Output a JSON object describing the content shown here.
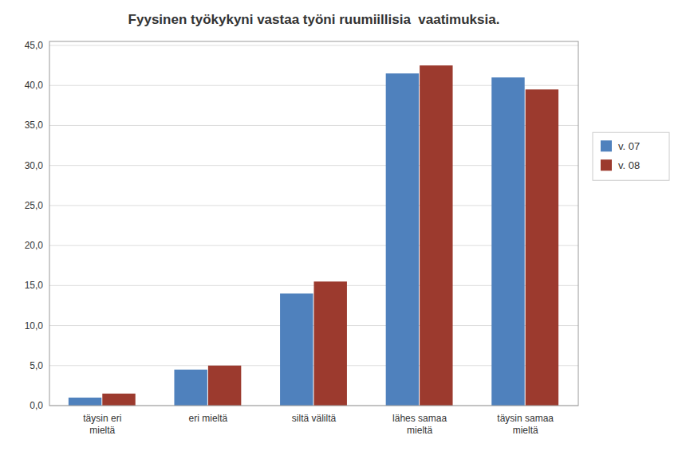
{
  "chart_data": {
    "type": "bar",
    "title": "Fyysinen työkykyni vastaa työni ruumiillisia  vaatimuksia.",
    "categories": [
      "täysin eri\nmieltä",
      "eri mieltä",
      "siltä väliltä",
      "lähes samaa\nmieltä",
      "täysin samaa\nmieltä"
    ],
    "series": [
      {
        "name": "v. 07",
        "color": "#4F81BD",
        "values": [
          1.0,
          4.5,
          14.0,
          41.5,
          41.0
        ]
      },
      {
        "name": "v. 08",
        "color": "#9C3A2E",
        "values": [
          1.5,
          5.0,
          15.5,
          42.5,
          39.5
        ]
      }
    ],
    "ylim": [
      0,
      45.5
    ],
    "yticks": [
      {
        "value": 0,
        "label": "0,0"
      },
      {
        "value": 5,
        "label": "5,0"
      },
      {
        "value": 10,
        "label": "10,0"
      },
      {
        "value": 15,
        "label": "15,0"
      },
      {
        "value": 20,
        "label": "20,0"
      },
      {
        "value": 25,
        "label": "25,0"
      },
      {
        "value": 30,
        "label": "30,0"
      },
      {
        "value": 35,
        "label": "35,0"
      },
      {
        "value": 40,
        "label": "40,0"
      },
      {
        "value": 45,
        "label": "45,0"
      }
    ],
    "grid": true,
    "legend": "right"
  }
}
